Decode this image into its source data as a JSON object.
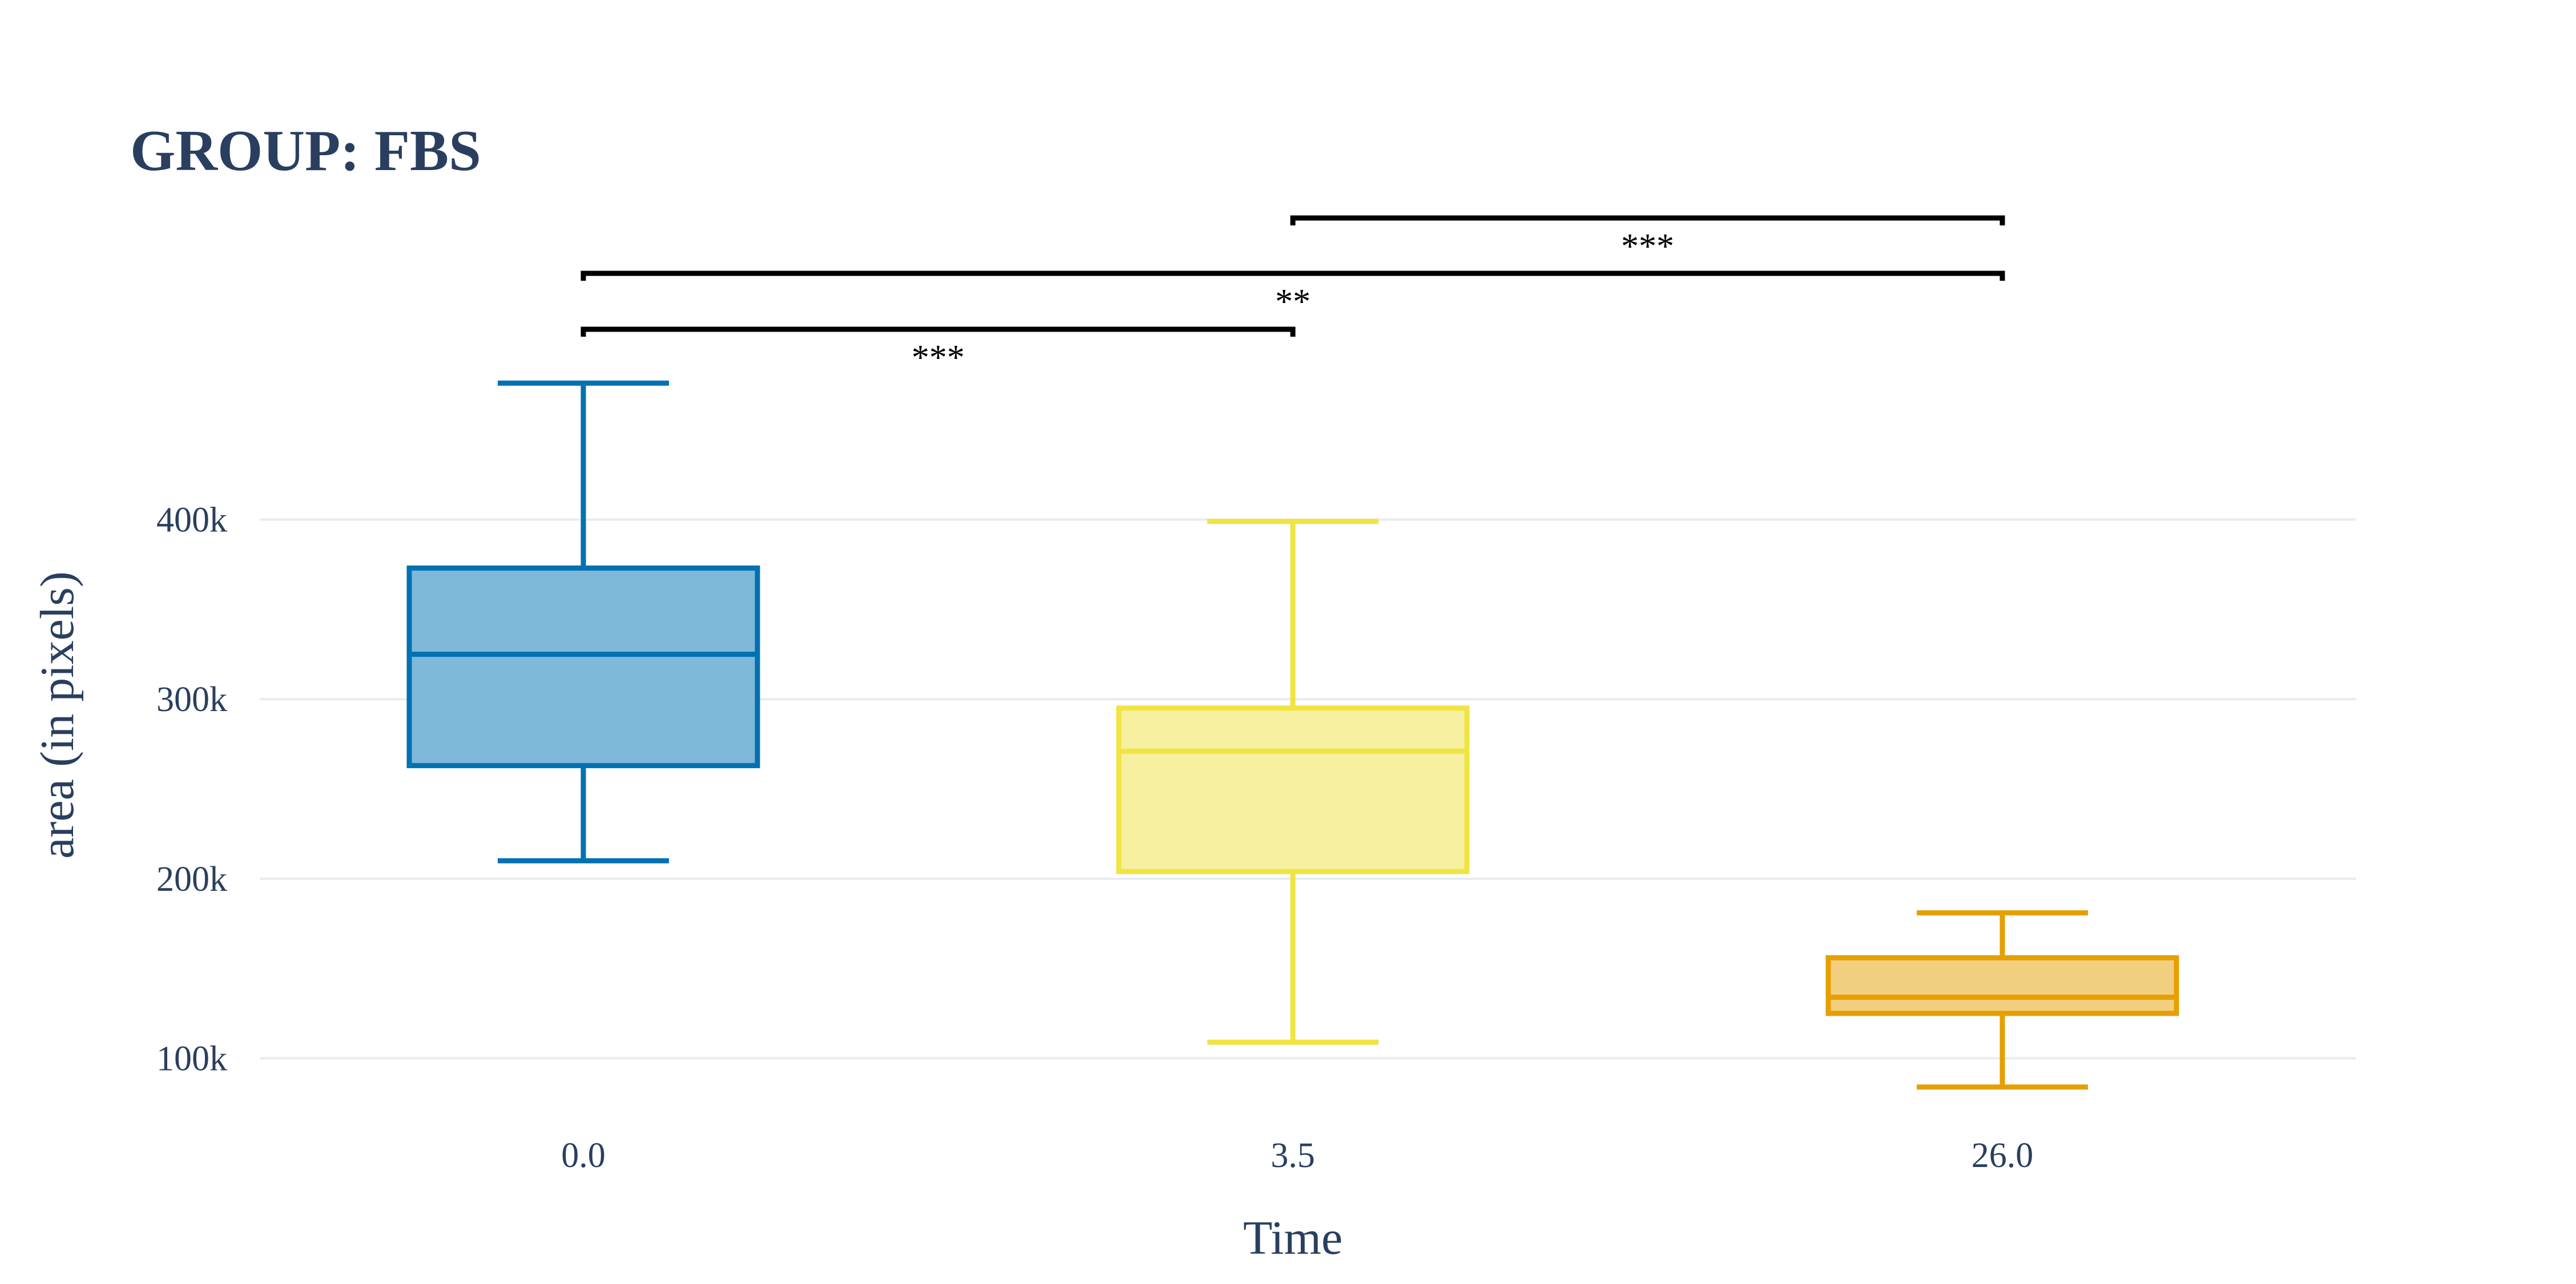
{
  "chart_data": {
    "type": "box",
    "title": "GROUP: FBS",
    "xlabel": "Time",
    "ylabel": "area (in pixels)",
    "categories": [
      "0.0",
      "3.5",
      "26.0"
    ],
    "y_ticks": [
      {
        "value": 100000,
        "label": "100k"
      },
      {
        "value": 200000,
        "label": "200k"
      },
      {
        "value": 300000,
        "label": "300k"
      },
      {
        "value": 400000,
        "label": "400k"
      }
    ],
    "grid": true,
    "series": [
      {
        "category": "0.0",
        "color": "#0072b2",
        "fill": "#7fb8d8",
        "min": 210000,
        "q1": 263000,
        "median": 325000,
        "q3": 373000,
        "max": 476000
      },
      {
        "category": "3.5",
        "color": "#f0e442",
        "fill": "#f7f0a0",
        "min": 109000,
        "q1": 204000,
        "median": 271000,
        "q3": 295000,
        "max": 399000
      },
      {
        "category": "26.0",
        "color": "#e69f00",
        "fill": "#f2cf7f",
        "min": 84000,
        "q1": 125000,
        "median": 134000,
        "q3": 156000,
        "max": 181000
      }
    ],
    "significance": [
      {
        "from": "0.0",
        "to": "3.5",
        "label": "***"
      },
      {
        "from": "0.0",
        "to": "26.0",
        "label": "**"
      },
      {
        "from": "3.5",
        "to": "26.0",
        "label": "***"
      }
    ]
  }
}
